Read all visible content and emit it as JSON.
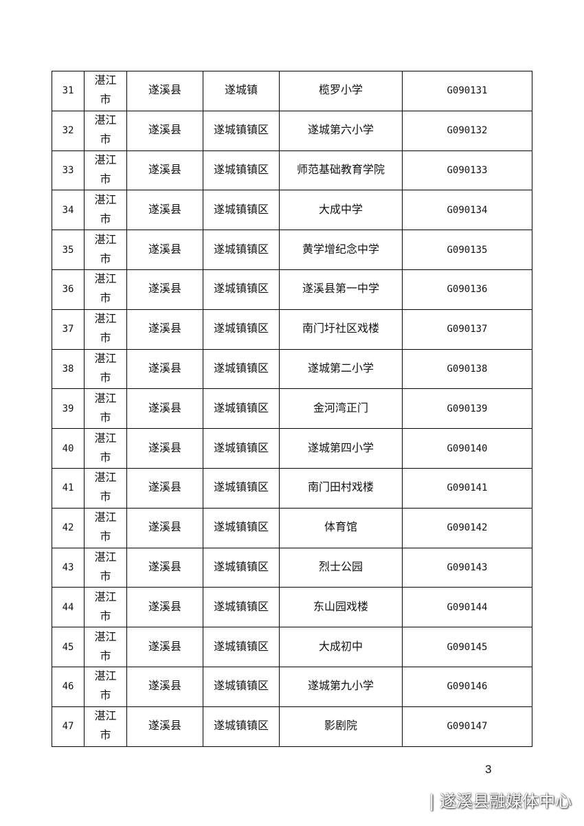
{
  "table": {
    "rows": [
      [
        31,
        "湛江市",
        "遂溪县",
        "遂城镇",
        "榄罗小学",
        "G090131"
      ],
      [
        32,
        "湛江市",
        "遂溪县",
        "遂城镇镇区",
        "遂城第六小学",
        "G090132"
      ],
      [
        33,
        "湛江市",
        "遂溪县",
        "遂城镇镇区",
        "师范基础教育学院",
        "G090133"
      ],
      [
        34,
        "湛江市",
        "遂溪县",
        "遂城镇镇区",
        "大成中学",
        "G090134"
      ],
      [
        35,
        "湛江市",
        "遂溪县",
        "遂城镇镇区",
        "黄学增纪念中学",
        "G090135"
      ],
      [
        36,
        "湛江市",
        "遂溪县",
        "遂城镇镇区",
        "遂溪县第一中学",
        "G090136"
      ],
      [
        37,
        "湛江市",
        "遂溪县",
        "遂城镇镇区",
        "南门圩社区戏楼",
        "G090137"
      ],
      [
        38,
        "湛江市",
        "遂溪县",
        "遂城镇镇区",
        "遂城第二小学",
        "G090138"
      ],
      [
        39,
        "湛江市",
        "遂溪县",
        "遂城镇镇区",
        "金河湾正门",
        "G090139"
      ],
      [
        40,
        "湛江市",
        "遂溪县",
        "遂城镇镇区",
        "遂城第四小学",
        "G090140"
      ],
      [
        41,
        "湛江市",
        "遂溪县",
        "遂城镇镇区",
        "南门田村戏楼",
        "G090141"
      ],
      [
        42,
        "湛江市",
        "遂溪县",
        "遂城镇镇区",
        "体育馆",
        "G090142"
      ],
      [
        43,
        "湛江市",
        "遂溪县",
        "遂城镇镇区",
        "烈士公园",
        "G090143"
      ],
      [
        44,
        "湛江市",
        "遂溪县",
        "遂城镇镇区",
        "东山园戏楼",
        "G090144"
      ],
      [
        45,
        "湛江市",
        "遂溪县",
        "遂城镇镇区",
        "大成初中",
        "G090145"
      ],
      [
        46,
        "湛江市",
        "遂溪县",
        "遂城镇镇区",
        "遂城第九小学",
        "G090146"
      ],
      [
        47,
        "湛江市",
        "遂溪县",
        "遂城镇镇区",
        "影剧院",
        "G090147"
      ]
    ]
  },
  "page_number": 3,
  "watermark": "| 遂溪县融媒体中心"
}
